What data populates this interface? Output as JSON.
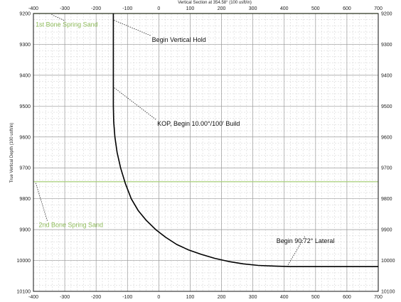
{
  "chart_data": {
    "type": "line",
    "title": "Vertical Section at 354.58° (100 usft/in)",
    "xlabel": "Vertical Section at 354.58° (100 usft/in)",
    "ylabel": "True Vertical Depth (100 usft/in)",
    "xlim": [
      -400,
      700
    ],
    "ylim": [
      9200,
      10100
    ],
    "y_inverted": true,
    "grid": true,
    "x_ticks": [
      -400,
      -300,
      -200,
      -100,
      0,
      100,
      200,
      300,
      400,
      500,
      600,
      700
    ],
    "y_ticks": [
      9200,
      9300,
      9400,
      9500,
      9600,
      9700,
      9800,
      9900,
      10000,
      10100
    ],
    "tick_labels": {
      "x_top": [
        "-400",
        "-300",
        "-200",
        "-100",
        "0",
        "100",
        "200",
        "300",
        "400",
        "500",
        "600",
        "700"
      ],
      "x_bottom": [
        "-400",
        "-300",
        "-200",
        "-100",
        "0",
        "100",
        "200",
        "300",
        "400",
        "500",
        "600",
        "700"
      ],
      "y_left": [
        "9200",
        "9300",
        "9400",
        "9500",
        "9600",
        "9700",
        "9800",
        "9900",
        "10000",
        "10100"
      ],
      "y_right": [
        "9200",
        "9300",
        "9400",
        "9500",
        "9600",
        "9700",
        "9800",
        "9900",
        "10000",
        "10100"
      ]
    },
    "series": [
      {
        "color": "#000000",
        "x": [
          -145,
          -145,
          -144,
          -140,
          -133,
          -122,
          -107,
          -88,
          -66,
          -40,
          -10,
          22,
          57,
          95,
          135,
          178,
          222,
          269,
          317,
          367,
          420,
          700
        ],
        "y": [
          9200,
          9500,
          9550,
          9600,
          9650,
          9700,
          9750,
          9800,
          9838,
          9870,
          9900,
          9925,
          9948,
          9966,
          9980,
          9993,
          10003,
          10011,
          10016,
          10018,
          10020,
          10020
        ]
      }
    ],
    "horizons": [
      {
        "label": "1st Bone Spring Sand",
        "y": 9200,
        "color": "#8fbc5a"
      },
      {
        "label": "2nd Bone Spring Sand",
        "y": 9745,
        "color": "#a9cf7a"
      }
    ],
    "annotations": [
      {
        "text": "1st Bone Spring Sand",
        "color": "#8fbc5a",
        "label_x": -393,
        "label_y": 9243,
        "target_x": -343,
        "target_y": 9203
      },
      {
        "text": "Begin Vertical Hold",
        "color": "#111111",
        "label_x": -22,
        "label_y": 9292,
        "target_x": -143,
        "target_y": 9222
      },
      {
        "text": "KOP, Begin 10.00°/100' Build",
        "color": "#111111",
        "label_x": -5,
        "label_y": 9564,
        "target_x": -143,
        "target_y": 9440
      },
      {
        "text": "2nd Bone Spring Sand",
        "color": "#8fbc5a",
        "label_x": -383,
        "label_y": 9892,
        "target_x": -393,
        "target_y": 9748
      },
      {
        "text": "Begin 90.72° Lateral",
        "color": "#111111",
        "label_x": 375,
        "label_y": 9943,
        "target_x": 410,
        "target_y": 10018
      }
    ]
  }
}
